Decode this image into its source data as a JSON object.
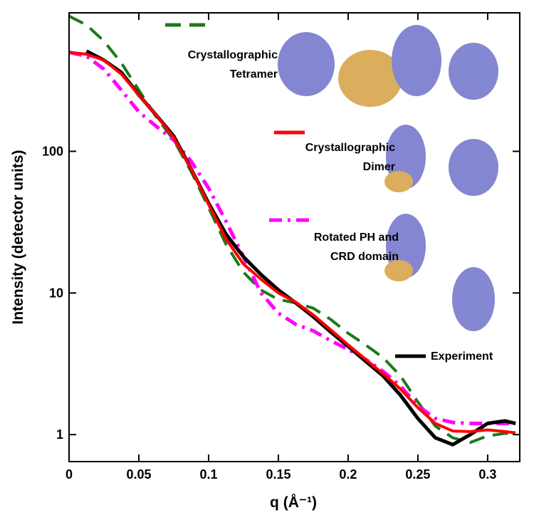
{
  "chart_data": {
    "type": "line",
    "x_label": "q (Å⁻¹)",
    "y_label": "Intensity (detector units)",
    "log_y": true,
    "xlim": [
      0,
      0.323
    ],
    "ylim": [
      0.645,
      950
    ],
    "xticks": [
      0,
      0.05,
      0.1,
      0.15,
      0.2,
      0.25,
      0.3
    ],
    "yticks": [
      1,
      10,
      100
    ],
    "x": [
      0,
      0.0125,
      0.025,
      0.0375,
      0.05,
      0.0625,
      0.075,
      0.0875,
      0.1,
      0.1125,
      0.125,
      0.1375,
      0.15,
      0.1625,
      0.175,
      0.1875,
      0.2,
      0.2125,
      0.225,
      0.2375,
      0.25,
      0.2625,
      0.275,
      0.2875,
      0.3,
      0.3125,
      0.32
    ],
    "series": [
      {
        "name": "Crystallographic\nTetramer",
        "color": "#1a7a1a",
        "line_style": "dashed",
        "values": [
          900,
          780,
          600,
          420,
          270,
          175,
          120,
          72,
          40,
          22,
          14,
          10.5,
          9,
          8.5,
          7.8,
          6.5,
          5.2,
          4.3,
          3.5,
          2.6,
          1.7,
          1.15,
          0.95,
          0.88,
          0.98,
          1.02,
          1.02
        ]
      },
      {
        "name": "Crystallographic\nDimer",
        "color": "#ff0000",
        "line_style": "solid",
        "values": [
          500,
          485,
          440,
          350,
          250,
          180,
          125,
          75,
          42,
          24,
          16,
          12.5,
          10,
          8.6,
          7,
          5.5,
          4.3,
          3.4,
          2.7,
          2.1,
          1.55,
          1.2,
          1.06,
          1.05,
          1.08,
          1.05,
          1.03
        ]
      },
      {
        "name": "Rotated PH and\nCRD domain",
        "color": "#ff00ff",
        "line_style": "dashdot",
        "values": [
          500,
          470,
          380,
          270,
          190,
          150,
          120,
          85,
          55,
          32,
          18,
          10,
          7.2,
          6,
          5.4,
          4.6,
          4,
          3.4,
          2.8,
          2.2,
          1.6,
          1.3,
          1.22,
          1.2,
          1.2,
          1.2,
          1.2
        ]
      },
      {
        "name": "Experiment",
        "color": "#000000",
        "line_style": "solid",
        "values": [
          null,
          510,
          440,
          360,
          250,
          180,
          128,
          75,
          43,
          26,
          18,
          13.5,
          10.5,
          8.5,
          6.8,
          5.3,
          4.2,
          3.3,
          2.6,
          1.9,
          1.3,
          0.95,
          0.85,
          1.0,
          1.2,
          1.25,
          1.2
        ]
      }
    ]
  }
}
